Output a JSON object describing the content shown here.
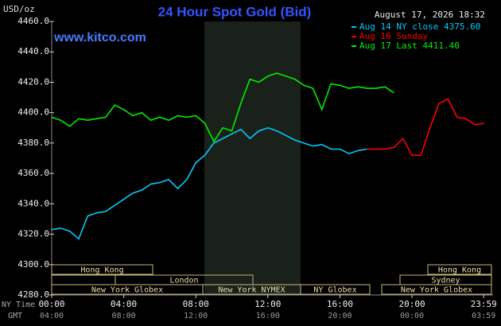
{
  "chart_data": {
    "type": "line",
    "title": "24 Hour Spot Gold (Bid)",
    "unit_label": "USD/oz",
    "website": "www.kitco.com",
    "timestamp": "August 17, 2026 18:32",
    "x_label": "NY Time",
    "x2_label": "GMT",
    "xlim": [
      0,
      24.5
    ],
    "ylim": [
      4280,
      4460
    ],
    "yticks": [
      {
        "value": 4280,
        "label": "4280.0"
      },
      {
        "value": 4300,
        "label": "4300.0"
      },
      {
        "value": 4320,
        "label": "4320.0"
      },
      {
        "value": 4340,
        "label": "4340.0"
      },
      {
        "value": 4360,
        "label": "4360.0"
      },
      {
        "value": 4380,
        "label": "4380.0"
      },
      {
        "value": 4400,
        "label": "4400.0"
      },
      {
        "value": 4420,
        "label": "4420.0"
      },
      {
        "value": 4440,
        "label": "4440.0"
      },
      {
        "value": 4460,
        "label": "4460.0"
      }
    ],
    "xticks": [
      {
        "value": 0,
        "label": "00:00"
      },
      {
        "value": 4,
        "label": "04:00"
      },
      {
        "value": 8,
        "label": "08:00"
      },
      {
        "value": 12,
        "label": "12:00"
      },
      {
        "value": 16,
        "label": "16:00"
      },
      {
        "value": 20,
        "label": "20:00"
      },
      {
        "value": 23.98,
        "label": "23:59"
      }
    ],
    "x2ticks": [
      "04:00",
      "08:00",
      "12:00",
      "16:00",
      "20:00",
      "00:00",
      "03:59"
    ],
    "grid": false,
    "sessions": [
      "Hong Kong",
      "London",
      "New York Globex",
      "New York NYMEX",
      "NY Globex",
      "Hong Kong",
      "Sydney",
      "New York Globex"
    ],
    "x": [
      0,
      0.5,
      1,
      1.5,
      2,
      2.5,
      3,
      3.5,
      4,
      4.5,
      5,
      5.5,
      6,
      6.5,
      7,
      7.5,
      8,
      8.5,
      9,
      9.5,
      10,
      10.5,
      11,
      11.5,
      12,
      12.5,
      13,
      13.5,
      14,
      14.5,
      15,
      15.5,
      16,
      16.5,
      17,
      17.5,
      18,
      18.5,
      19,
      19.5,
      20,
      20.5,
      21,
      21.5,
      22,
      22.5,
      23,
      23.5,
      24
    ],
    "series": [
      {
        "name": "Aug 14 NY close 4375.60",
        "color": "#00ccff",
        "values": [
          4323,
          4324,
          4322,
          4317,
          4332,
          4334,
          4335,
          4339,
          4343,
          4347,
          4349,
          4353,
          4354,
          4356,
          4350,
          4356,
          4367,
          4372,
          4380,
          4383,
          4386,
          4389,
          4383,
          4388,
          4390,
          4388,
          4385,
          4382,
          4380,
          4378,
          4379,
          4376,
          4376,
          4373,
          4375,
          4376,
          null,
          null,
          null,
          null,
          null,
          null,
          null,
          null,
          null,
          null,
          null,
          null,
          null
        ]
      },
      {
        "name": "Aug 16 Sunday",
        "color": "#ff0000",
        "values": [
          null,
          null,
          null,
          null,
          null,
          null,
          null,
          null,
          null,
          null,
          null,
          null,
          null,
          null,
          null,
          null,
          null,
          null,
          null,
          null,
          null,
          null,
          null,
          null,
          null,
          null,
          null,
          null,
          null,
          null,
          null,
          null,
          null,
          null,
          null,
          4376,
          4376,
          4376,
          4377,
          4383,
          4372,
          4372,
          4390,
          4406,
          4409,
          4397,
          4396,
          4392,
          4393
        ]
      },
      {
        "name": "Aug 17 Last 4411.40",
        "color": "#00ee00",
        "values": [
          4397,
          4395,
          4391,
          4396,
          4395,
          4396,
          4397,
          4405,
          4402,
          4398,
          4400,
          4395,
          4397,
          4395,
          4398,
          4397,
          4398,
          4393,
          4381,
          4390,
          4388,
          4406,
          4422,
          4420,
          4424,
          4426,
          4424,
          4422,
          4418,
          4416,
          4402,
          4419,
          4418,
          4416,
          4417,
          4416,
          4416,
          4417,
          4413,
          null,
          null,
          null,
          null,
          null,
          null,
          null,
          null,
          null,
          null
        ]
      }
    ]
  }
}
